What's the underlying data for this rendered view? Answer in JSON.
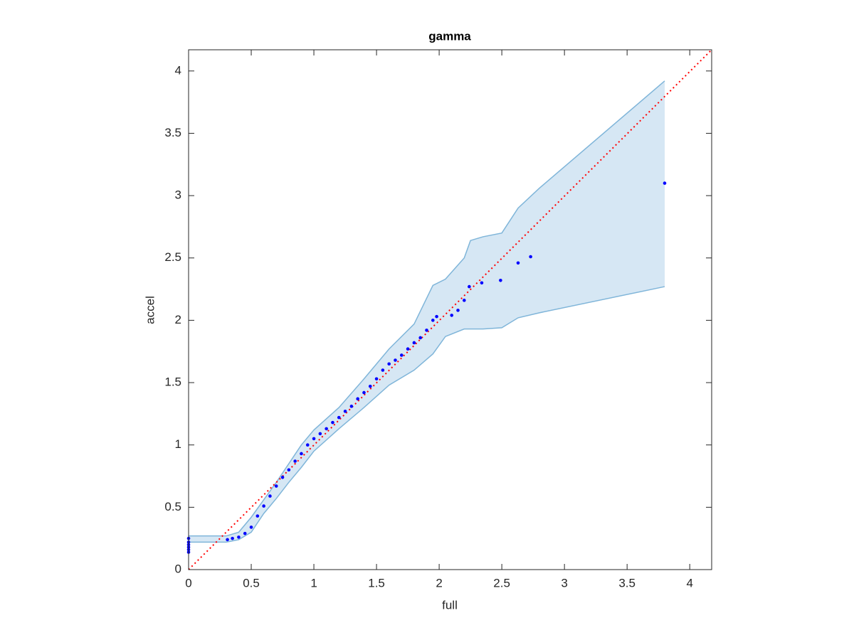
{
  "chart_data": {
    "type": "scatter",
    "title": "gamma",
    "x_label": "full",
    "y_label": "accel",
    "x": [
      0,
      0,
      0,
      0,
      0,
      0,
      0.31,
      0.35,
      0.4,
      0.45,
      0.5,
      0.55,
      0.6,
      0.65,
      0.7,
      0.75,
      0.8,
      0.85,
      0.9,
      0.95,
      1.0,
      1.05,
      1.1,
      1.15,
      1.2,
      1.25,
      1.3,
      1.35,
      1.4,
      1.45,
      1.5,
      1.55,
      1.6,
      1.65,
      1.7,
      1.75,
      1.8,
      1.85,
      1.9,
      1.95,
      1.98,
      2.1,
      2.15,
      2.2,
      2.24,
      2.34,
      2.49,
      2.63,
      2.73,
      3.8
    ],
    "values": [
      0.14,
      0.16,
      0.18,
      0.2,
      0.22,
      0.25,
      0.24,
      0.25,
      0.26,
      0.29,
      0.34,
      0.43,
      0.51,
      0.59,
      0.67,
      0.74,
      0.8,
      0.87,
      0.93,
      1.0,
      1.05,
      1.09,
      1.13,
      1.18,
      1.22,
      1.27,
      1.31,
      1.37,
      1.42,
      1.47,
      1.53,
      1.6,
      1.65,
      1.68,
      1.72,
      1.77,
      1.82,
      1.86,
      1.92,
      2.0,
      2.03,
      2.04,
      2.08,
      2.16,
      2.27,
      2.3,
      2.32,
      2.46,
      2.51,
      3.1
    ],
    "color": "#0000ff",
    "band": {
      "color": "#7fb5d9",
      "fill": "#d6e7f4",
      "x": [
        0,
        0.3,
        0.4,
        0.5,
        0.6,
        0.7,
        0.8,
        0.9,
        1.0,
        1.2,
        1.4,
        1.6,
        1.8,
        1.95,
        2.05,
        2.2,
        2.25,
        2.35,
        2.5,
        2.63,
        2.8,
        3.8
      ],
      "upper": [
        0.27,
        0.27,
        0.3,
        0.42,
        0.56,
        0.7,
        0.85,
        1.0,
        1.12,
        1.3,
        1.53,
        1.77,
        1.97,
        2.28,
        2.33,
        2.5,
        2.64,
        2.67,
        2.7,
        2.9,
        3.06,
        3.92
      ],
      "lower": [
        0.22,
        0.22,
        0.24,
        0.3,
        0.45,
        0.57,
        0.7,
        0.82,
        0.95,
        1.13,
        1.3,
        1.48,
        1.6,
        1.73,
        1.87,
        1.93,
        1.93,
        1.93,
        1.94,
        2.02,
        2.06,
        2.27
      ]
    },
    "reference_line": {
      "color": "#ff0000",
      "style": "dotted"
    },
    "xlim": [
      0,
      4.175
    ],
    "ylim": [
      0,
      4.17
    ],
    "xticks": [
      0,
      0.5,
      1,
      1.5,
      2,
      2.5,
      3,
      3.5,
      4
    ],
    "yticks": [
      0,
      0.5,
      1,
      1.5,
      2,
      2.5,
      3,
      3.5,
      4
    ]
  }
}
